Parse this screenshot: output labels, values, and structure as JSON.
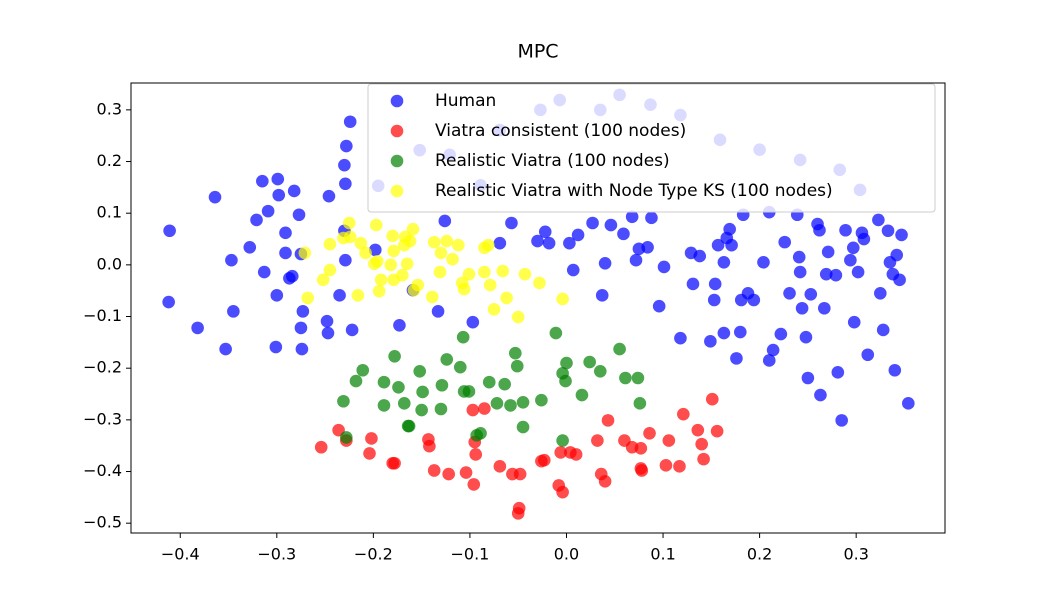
{
  "chart_data": {
    "type": "scatter",
    "title": "MPC",
    "xlim": [
      -0.451,
      0.392
    ],
    "ylim": [
      -0.519,
      0.352
    ],
    "xticks": [
      {
        "value": -0.4,
        "label": "−0.4"
      },
      {
        "value": -0.3,
        "label": "−0.3"
      },
      {
        "value": -0.2,
        "label": "−0.2"
      },
      {
        "value": -0.1,
        "label": "−0.1"
      },
      {
        "value": 0,
        "label": "0.0"
      },
      0.1,
      0.2,
      0.3
    ],
    "yticks": [
      {
        "value": -0.5,
        "label": "−0.5"
      },
      {
        "value": -0.4,
        "label": "−0.4"
      },
      {
        "value": -0.3,
        "label": "−0.3"
      },
      {
        "value": -0.2,
        "label": "−0.2"
      },
      {
        "value": -0.1,
        "label": "−0.1"
      },
      {
        "value": 0,
        "label": "0.0"
      },
      0.1,
      0.2,
      0.3
    ],
    "legend": "upper right",
    "series": [
      {
        "name": "Human",
        "color": "#0000ff",
        "x": [
          -0.411,
          -0.412,
          -0.364,
          -0.382,
          -0.353,
          -0.347,
          -0.345,
          -0.328,
          -0.321,
          -0.315,
          -0.313,
          -0.309,
          -0.301,
          -0.299,
          -0.298,
          -0.3,
          -0.291,
          -0.291,
          -0.287,
          -0.284,
          -0.282,
          -0.277,
          -0.275,
          -0.273,
          -0.274,
          -0.275,
          -0.248,
          -0.247,
          -0.246,
          -0.235,
          -0.23,
          -0.229,
          -0.229,
          -0.23,
          -0.228,
          -0.224,
          -0.222,
          -0.198,
          -0.195,
          -0.173,
          -0.159,
          -0.133,
          -0.126,
          -0.097,
          -0.069,
          -0.057,
          -0.03,
          -0.022,
          -0.018,
          0.003,
          0.007,
          0.012,
          0.027,
          0.037,
          0.04,
          0.046,
          0.059,
          0.068,
          0.072,
          0.075,
          0.084,
          0.088,
          0.096,
          0.101,
          0.118,
          0.129,
          0.131,
          0.138,
          0.149,
          0.153,
          0.154,
          0.157,
          0.163,
          0.166,
          0.169,
          0.171,
          0.176,
          0.18,
          0.181,
          0.188,
          0.204,
          0.21,
          0.214,
          0.222,
          0.226,
          0.231,
          0.241,
          0.242,
          0.244,
          0.248,
          0.25,
          0.253,
          0.26,
          0.263,
          0.267,
          0.269,
          0.271,
          0.279,
          0.281,
          0.285,
          0.294,
          0.297,
          0.298,
          0.302,
          0.308,
          0.312,
          0.323,
          0.325,
          0.328,
          0.333,
          0.335,
          0.338,
          0.342,
          0.345,
          0.347,
          0.34,
          0.354,
          0.289,
          0.306,
          0.194,
          0.163,
          0.183,
          0.21,
          0.239,
          0.262,
          -0.121,
          -0.069,
          -0.027,
          -0.007,
          0.035,
          0.055,
          0.087,
          0.118,
          0.159,
          0.2,
          0.242,
          0.283,
          0.304,
          -0.152,
          -0.089
        ],
        "values": [
          0.066,
          -0.072,
          0.131,
          -0.122,
          -0.163,
          0.009,
          -0.09,
          0.034,
          0.087,
          0.162,
          -0.014,
          0.104,
          -0.159,
          0.166,
          0.135,
          -0.059,
          0.062,
          0.023,
          -0.026,
          -0.022,
          0.143,
          0.097,
          -0.122,
          -0.09,
          -0.163,
          0.021,
          -0.109,
          -0.132,
          0.133,
          -0.059,
          0.066,
          0.009,
          0.157,
          0.193,
          0.23,
          0.277,
          -0.126,
          0.029,
          0.153,
          -0.117,
          -0.049,
          -0.09,
          0.085,
          -0.111,
          0.042,
          0.081,
          0.046,
          0.064,
          0.042,
          0.042,
          -0.01,
          0.058,
          0.081,
          -0.059,
          0.003,
          0.077,
          0.06,
          0.093,
          0.009,
          0.031,
          0.034,
          0.091,
          -0.08,
          -0.004,
          -0.142,
          0.023,
          -0.037,
          0.017,
          -0.148,
          -0.068,
          -0.037,
          0.038,
          0.005,
          0.052,
          0.069,
          0.038,
          -0.181,
          -0.13,
          -0.068,
          -0.055,
          0.005,
          -0.185,
          -0.165,
          -0.134,
          0.044,
          -0.055,
          0.015,
          -0.014,
          -0.084,
          -0.14,
          -0.219,
          -0.057,
          0.079,
          -0.252,
          -0.084,
          -0.018,
          0.025,
          -0.02,
          -0.208,
          -0.301,
          0.009,
          0.033,
          -0.111,
          -0.014,
          0.05,
          -0.174,
          0.087,
          -0.055,
          -0.126,
          0.066,
          0.005,
          -0.018,
          0.019,
          -0.029,
          0.058,
          -0.204,
          -0.268,
          0.067,
          0.062,
          -0.068,
          -0.132,
          0.097,
          0.102,
          0.097,
          0.067,
          0.213,
          0.261,
          0.3,
          0.319,
          0.3,
          0.329,
          0.31,
          0.29,
          0.242,
          0.223,
          0.203,
          0.184,
          0.145,
          0.222,
          0.154
        ]
      },
      {
        "name": "Viatra consistent (100 nodes)",
        "color": "#ff0000",
        "x": [
          -0.254,
          -0.236,
          -0.228,
          -0.202,
          -0.204,
          -0.18,
          -0.178,
          -0.143,
          -0.142,
          -0.137,
          -0.122,
          -0.104,
          -0.097,
          -0.095,
          -0.094,
          -0.096,
          -0.085,
          -0.069,
          -0.056,
          -0.05,
          -0.049,
          -0.048,
          -0.026,
          -0.023,
          -0.006,
          -0.008,
          -0.004,
          0.004,
          0.01,
          0.032,
          0.036,
          0.04,
          0.043,
          0.06,
          0.068,
          0.077,
          0.077,
          0.078,
          0.086,
          0.103,
          0.106,
          0.117,
          0.121,
          0.136,
          0.14,
          0.142,
          0.151,
          0.156
        ],
        "values": [
          -0.353,
          -0.32,
          -0.34,
          -0.336,
          -0.365,
          -0.384,
          -0.384,
          -0.338,
          -0.351,
          -0.398,
          -0.405,
          -0.402,
          -0.281,
          -0.343,
          -0.367,
          -0.425,
          -0.278,
          -0.39,
          -0.405,
          -0.481,
          -0.471,
          -0.405,
          -0.38,
          -0.378,
          -0.363,
          -0.427,
          -0.44,
          -0.363,
          -0.367,
          -0.34,
          -0.405,
          -0.419,
          -0.301,
          -0.34,
          -0.353,
          -0.355,
          -0.394,
          -0.398,
          -0.326,
          -0.388,
          -0.34,
          -0.39,
          -0.289,
          -0.32,
          -0.347,
          -0.376,
          -0.26,
          -0.322
        ]
      },
      {
        "name": "Realistic Viatra (100 nodes)",
        "color": "#008000",
        "x": [
          -0.231,
          -0.228,
          -0.218,
          -0.211,
          -0.189,
          -0.178,
          -0.174,
          -0.189,
          -0.168,
          -0.164,
          -0.163,
          -0.15,
          -0.149,
          -0.13,
          -0.129,
          -0.124,
          -0.11,
          -0.107,
          -0.101,
          -0.093,
          -0.089,
          -0.08,
          -0.072,
          -0.064,
          -0.058,
          -0.053,
          -0.051,
          -0.045,
          -0.045,
          -0.026,
          -0.011,
          -0.004,
          -0.001,
          -0.004,
          0.0,
          0.016,
          0.024,
          0.035,
          0.055,
          0.061,
          0.074,
          0.076,
          -0.152,
          -0.106
        ],
        "values": [
          -0.264,
          -0.334,
          -0.225,
          -0.204,
          -0.227,
          -0.177,
          -0.237,
          -0.272,
          -0.268,
          -0.312,
          -0.312,
          -0.281,
          -0.246,
          -0.279,
          -0.233,
          -0.183,
          -0.198,
          -0.14,
          -0.245,
          -0.33,
          -0.326,
          -0.227,
          -0.268,
          -0.231,
          -0.272,
          -0.171,
          -0.196,
          -0.314,
          -0.266,
          -0.262,
          -0.132,
          -0.21,
          -0.225,
          -0.34,
          -0.19,
          -0.252,
          -0.188,
          -0.206,
          -0.163,
          -0.219,
          -0.219,
          -0.268,
          -0.206,
          -0.245
        ]
      },
      {
        "name": "Realistic Viatra with Node Type KS (100 nodes)",
        "color": "#ffff00",
        "x": [
          -0.271,
          -0.268,
          -0.252,
          -0.245,
          -0.231,
          -0.225,
          -0.224,
          -0.216,
          -0.213,
          -0.199,
          -0.197,
          -0.196,
          -0.194,
          -0.192,
          -0.182,
          -0.18,
          -0.179,
          -0.17,
          -0.168,
          -0.167,
          -0.165,
          -0.162,
          -0.159,
          -0.158,
          -0.154,
          -0.139,
          -0.137,
          -0.131,
          -0.13,
          -0.124,
          -0.118,
          -0.112,
          -0.108,
          -0.106,
          -0.101,
          -0.085,
          -0.085,
          -0.081,
          -0.079,
          -0.075,
          -0.066,
          -0.062,
          -0.05,
          -0.043,
          -0.028,
          -0.004,
          -0.179,
          -0.208,
          -0.245
        ],
        "values": [
          0.023,
          -0.064,
          -0.029,
          0.04,
          0.052,
          0.081,
          0.054,
          -0.059,
          0.042,
          0.002,
          0.077,
          0.007,
          -0.051,
          -0.029,
          0.0,
          0.056,
          0.027,
          -0.02,
          0.038,
          0.054,
          0.002,
          0.046,
          0.069,
          -0.049,
          -0.039,
          -0.062,
          0.044,
          -0.014,
          0.023,
          0.046,
          0.011,
          0.038,
          -0.035,
          -0.047,
          -0.018,
          -0.014,
          0.033,
          0.038,
          -0.039,
          -0.086,
          -0.012,
          -0.064,
          -0.101,
          -0.018,
          -0.035,
          -0.066,
          -0.029,
          0.023,
          -0.01
        ]
      }
    ]
  }
}
